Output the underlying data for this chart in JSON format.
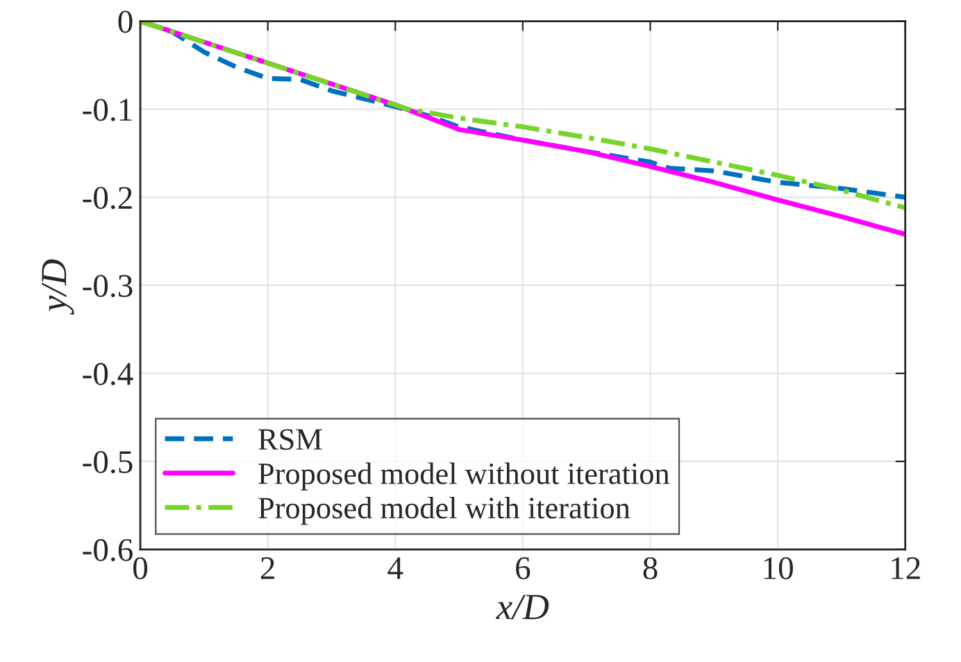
{
  "chart_data": {
    "type": "line",
    "xlabel": "x/D",
    "ylabel": "y/D",
    "xlim": [
      0,
      12
    ],
    "ylim": [
      -0.6,
      0
    ],
    "xticks": [
      0,
      2,
      4,
      6,
      8,
      10,
      12
    ],
    "yticks": [
      -0.6,
      -0.5,
      -0.4,
      -0.3,
      -0.2,
      -0.1,
      0
    ],
    "grid": true,
    "legend": "bottom left",
    "series": [
      {
        "name": "RSM",
        "color": "#0072bd",
        "line_style": "dashed",
        "x": [
          0,
          0.5,
          1,
          1.5,
          2,
          2.5,
          3,
          3.5,
          4,
          4.5,
          5,
          6,
          7,
          8,
          8.3,
          9,
          10,
          11,
          11.5,
          12
        ],
        "values": [
          0,
          -0.012,
          -0.035,
          -0.052,
          -0.065,
          -0.066,
          -0.079,
          -0.088,
          -0.097,
          -0.107,
          -0.12,
          -0.135,
          -0.148,
          -0.16,
          -0.167,
          -0.17,
          -0.183,
          -0.19,
          -0.195,
          -0.2
        ]
      },
      {
        "name": "Proposed model without iteration",
        "color": "#ff00ff",
        "line_style": "solid",
        "x": [
          0,
          4,
          5,
          6,
          7,
          8,
          9,
          10,
          11,
          12
        ],
        "values": [
          0,
          -0.095,
          -0.123,
          -0.135,
          -0.148,
          -0.165,
          -0.183,
          -0.203,
          -0.222,
          -0.242
        ]
      },
      {
        "name": "Proposed model with iteration",
        "color": "#77d42a",
        "line_style": "dashdot",
        "x": [
          0,
          4.2,
          5,
          6,
          7,
          8,
          9,
          10,
          11,
          12
        ],
        "values": [
          0,
          -0.1,
          -0.11,
          -0.12,
          -0.132,
          -0.145,
          -0.16,
          -0.175,
          -0.192,
          -0.212
        ]
      }
    ]
  }
}
